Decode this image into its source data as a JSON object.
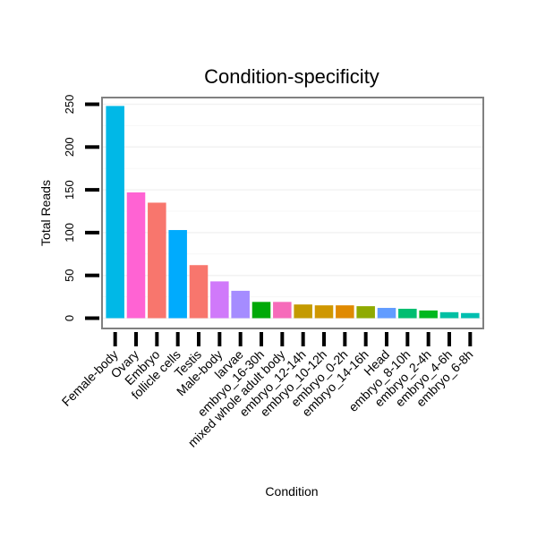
{
  "chart_data": {
    "type": "bar",
    "title": "Condition-specificity",
    "xlabel": "Condition",
    "ylabel": "Total Reads",
    "ylim": [
      0,
      260
    ],
    "yticks": [
      0,
      50,
      100,
      150,
      200,
      250
    ],
    "grid": true,
    "categories": [
      "Female-body",
      "Ovary",
      "Embryo",
      "follicle cells",
      "Testis",
      "Male-body",
      "larvae",
      "embryo_16-30h",
      "mixed whole adult body",
      "embryo_12-14h",
      "embryo_10-12h",
      "embryo_0-2h",
      "embryo_14-16h",
      "Head",
      "embryo_8-10h",
      "embryo_2-4h",
      "embryo_4-6h",
      "embryo_6-8h"
    ],
    "values": [
      248,
      147,
      135,
      103,
      62,
      43,
      32,
      19,
      19,
      16,
      15,
      15,
      14,
      12,
      11,
      9,
      7,
      6
    ],
    "colors": [
      "#00B8E7",
      "#FF63D3",
      "#F8766D",
      "#00ABFD",
      "#F8766D",
      "#D079FA",
      "#A58CFF",
      "#00A908",
      "#F66BBA",
      "#C49A00",
      "#CF9700",
      "#E08A00",
      "#8FAA00",
      "#619CFF",
      "#00BE71",
      "#00B81F",
      "#00C0A3",
      "#00BFB0"
    ]
  }
}
